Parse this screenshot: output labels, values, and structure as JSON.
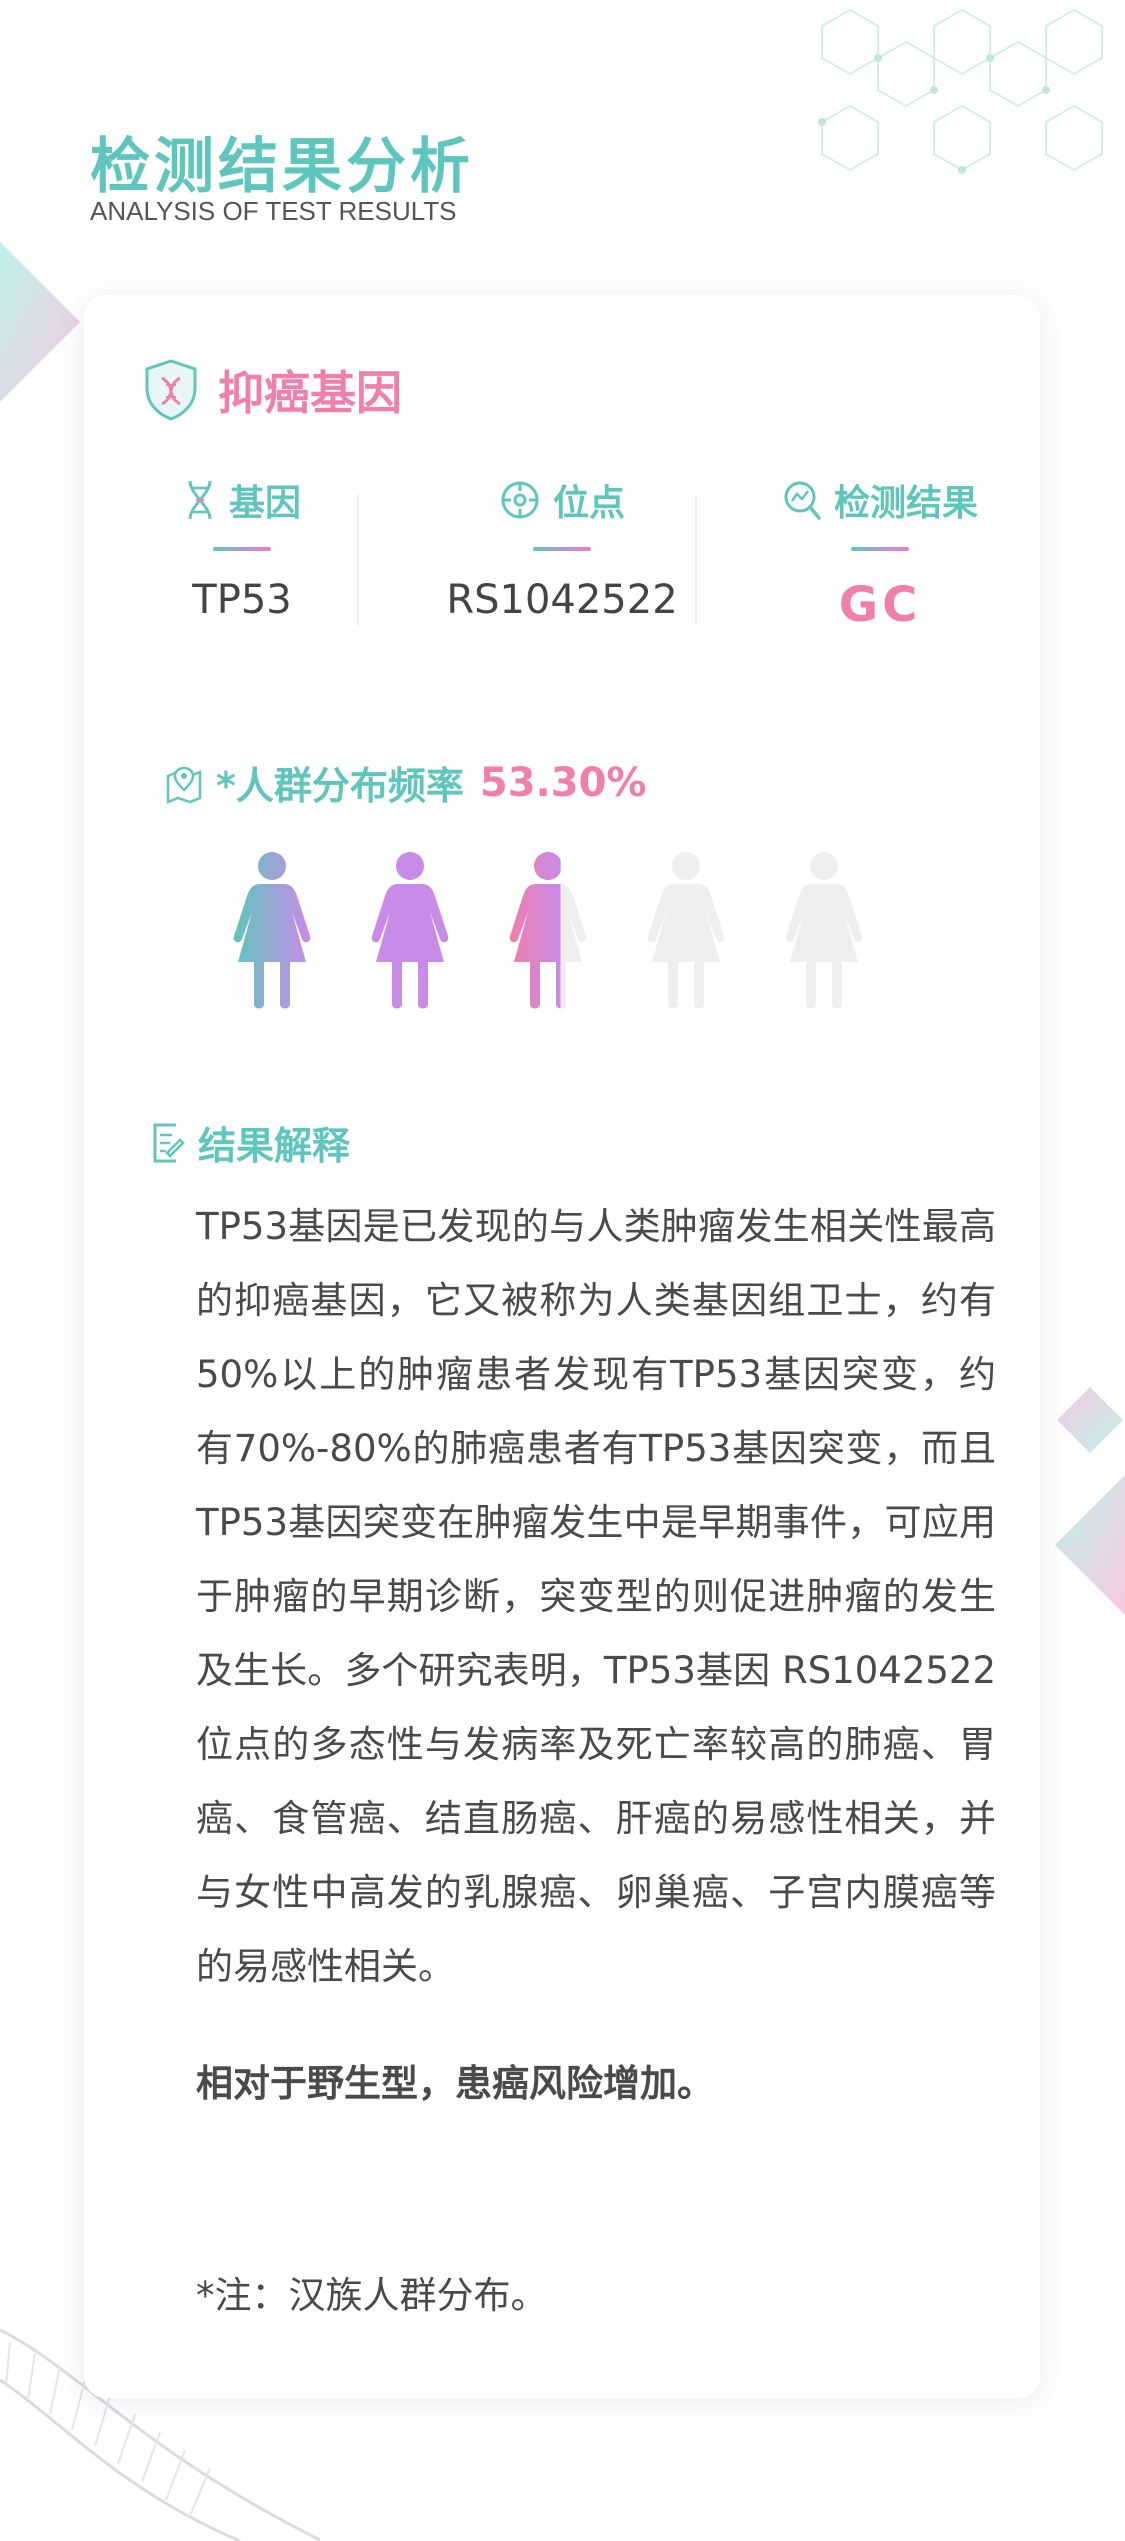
{
  "header": {
    "title": "检测结果分析",
    "subtitle": "ANALYSIS OF TEST RESULTS"
  },
  "card": {
    "category": {
      "title": "抑癌基因",
      "icon": "dna-shield-icon"
    },
    "columns": [
      {
        "label": "基因",
        "value": "TP53",
        "icon": "dna-icon"
      },
      {
        "label": "位点",
        "value": "RS1042522",
        "icon": "target-icon"
      },
      {
        "label": "检测结果",
        "value": "GC",
        "icon": "search-chart-icon"
      }
    ],
    "frequency": {
      "label": "*人群分布频率",
      "value": "53.30%",
      "level_fraction": 0.533,
      "icon": "map-pin-icon"
    },
    "explanation": {
      "title": "结果解释",
      "icon": "document-edit-icon",
      "body": "TP53基因是已发现的与人类肿瘤发生相关性最高的抑癌基因，它又被称为人类基因组卫士，约有50%以上的肿瘤患者发现有TP53基因突变，约有70%-80%的肺癌患者有TP53基因突变，而且TP53基因突变在肿瘤发生中是早期事件，可应用于肿瘤的早期诊断，突变型的则促进肿瘤的发生及生长。多个研究表明，TP53基因 RS1042522 位点的多态性与发病率及死亡率较高的肺癌、胃癌、食管癌、结直肠癌、肝癌的易感性相关，并与女性中高发的乳腺癌、卵巢癌、子宫内膜癌等的易感性相关。",
      "conclusion": "相对于野生型，患癌风险增加。"
    },
    "footnote": "*注：汉族人群分布。"
  },
  "colors": {
    "teal": "#5fc6bd",
    "pink": "#ef7fab",
    "purple": "#c98be8",
    "empty_figure": "#efefef"
  }
}
